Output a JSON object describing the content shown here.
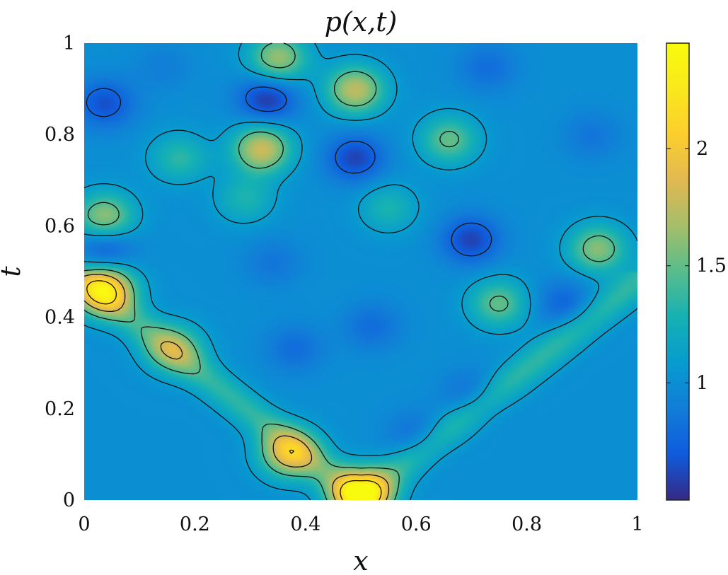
{
  "chart_data": {
    "type": "heatmap",
    "title": "p(x,t)",
    "xlabel": "x",
    "ylabel": "t",
    "xlim": [
      0,
      1
    ],
    "ylim": [
      0,
      1
    ],
    "xticks": [
      "0",
      "0.2",
      "0.4",
      "0.6",
      "0.8",
      "1"
    ],
    "yticks": [
      "0",
      "0.2",
      "0.4",
      "0.6",
      "0.8",
      "1"
    ],
    "colorbar": {
      "min": 0.5,
      "max": 2.45,
      "ticks": [
        "1",
        "1.5",
        "2"
      ],
      "colormap": "parula"
    },
    "background_value": 1.0,
    "contours": true,
    "features": [
      {
        "x": 0.5,
        "t": 0.01,
        "value": 2.4
      },
      {
        "x": 0.035,
        "t": 0.46,
        "value": 2.15
      },
      {
        "x": 0.37,
        "t": 0.1,
        "value": 1.85
      },
      {
        "x": 0.32,
        "t": 0.77,
        "value": 1.8
      },
      {
        "x": 0.49,
        "t": 0.9,
        "value": 1.75
      },
      {
        "x": 0.035,
        "t": 0.62,
        "value": 1.65
      },
      {
        "x": 0.35,
        "t": 0.97,
        "value": 1.65
      },
      {
        "x": 0.93,
        "t": 0.55,
        "value": 1.6
      },
      {
        "x": 0.75,
        "t": 0.43,
        "value": 1.5
      },
      {
        "x": 0.16,
        "t": 0.33,
        "value": 1.55
      },
      {
        "x": 0.33,
        "t": 0.88,
        "value": 0.55
      },
      {
        "x": 0.49,
        "t": 0.75,
        "value": 0.6
      },
      {
        "x": 0.7,
        "t": 0.57,
        "value": 0.6
      },
      {
        "x": 0.035,
        "t": 0.87,
        "value": 0.65
      },
      {
        "x": 0.035,
        "t": 0.55,
        "value": 0.65
      },
      {
        "x": 0.87,
        "t": 0.43,
        "value": 0.75
      },
      {
        "x": 0.52,
        "t": 0.38,
        "value": 0.8
      },
      {
        "x": 0.38,
        "t": 0.33,
        "value": 0.8
      },
      {
        "x": 0.34,
        "t": 0.52,
        "value": 0.85
      },
      {
        "x": 0.7,
        "t": 0.23,
        "value": 0.8
      },
      {
        "x": 0.6,
        "t": 0.14,
        "value": 0.8
      },
      {
        "x": 0.14,
        "t": 0.95,
        "value": 0.9
      },
      {
        "x": 0.92,
        "t": 0.8,
        "value": 0.85
      },
      {
        "x": 0.73,
        "t": 0.95,
        "value": 0.8
      },
      {
        "x": 0.66,
        "t": 0.79,
        "value": 1.5
      },
      {
        "x": 0.17,
        "t": 0.75,
        "value": 1.35
      },
      {
        "x": 0.55,
        "t": 0.64,
        "value": 1.3
      },
      {
        "x": 0.29,
        "t": 0.66,
        "value": 1.3
      }
    ]
  }
}
